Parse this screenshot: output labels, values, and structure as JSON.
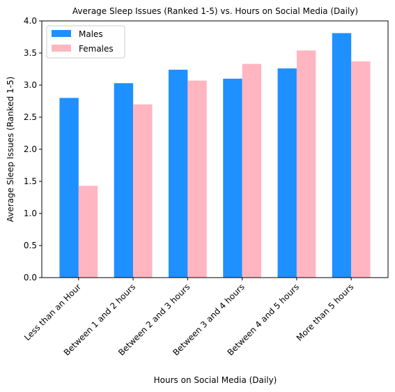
{
  "chart_data": {
    "type": "bar",
    "title": "Average Sleep Issues (Ranked 1-5) vs. Hours on Social Media (Daily)",
    "xlabel": "Hours on Social Media (Daily)",
    "ylabel": "Average Sleep Issues (Ranked 1-5)",
    "categories": [
      "Less than an Hour",
      "Between 1 and 2 hours",
      "Between 2 and 3 hours",
      "Between 3 and 4 hours",
      "Between 4 and 5 hours",
      "More than 5 hours"
    ],
    "series": [
      {
        "name": "Males",
        "color": "#1e90ff",
        "values": [
          2.8,
          3.03,
          3.24,
          3.1,
          3.26,
          3.81
        ]
      },
      {
        "name": "Females",
        "color": "#ffb6c1",
        "values": [
          1.43,
          2.7,
          3.07,
          3.33,
          3.54,
          3.37
        ]
      }
    ],
    "ylim": [
      0,
      4.0
    ],
    "yticks": [
      "0.0",
      "0.5",
      "1.0",
      "1.5",
      "2.0",
      "2.5",
      "3.0",
      "3.5",
      "4.0"
    ],
    "grid": false,
    "legend_position": "top-left"
  }
}
